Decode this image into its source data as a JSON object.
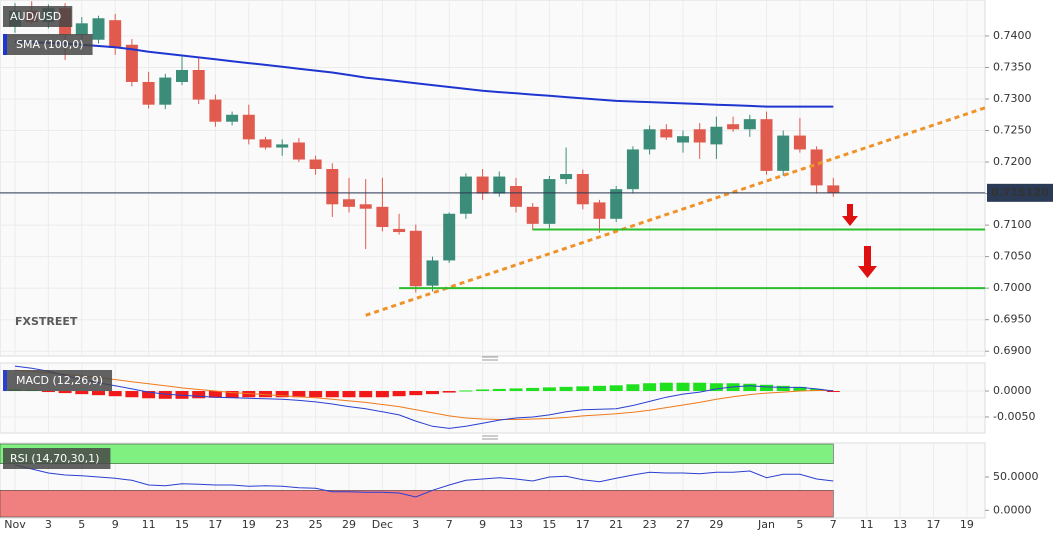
{
  "chart_data": [
    {
      "type": "candlestick",
      "title": "AUD/USD",
      "watermark": "FXSTREET",
      "categories": [
        "Nov",
        null,
        "3",
        null,
        "5",
        null,
        "9",
        null,
        "11",
        null,
        "15",
        null,
        "17",
        null,
        "19",
        null,
        "23",
        null,
        "25",
        null,
        "29",
        null,
        "Dec",
        null,
        "3",
        null,
        "7",
        null,
        "9",
        null,
        "13",
        null,
        "15",
        null,
        "17",
        null,
        "21",
        null,
        "23",
        null,
        "27",
        null,
        "29",
        null,
        null,
        "Jan",
        null,
        "5",
        null,
        "7",
        null,
        "11",
        null,
        "13",
        null,
        "17",
        null,
        "19"
      ],
      "open": [
        0.7415,
        0.744,
        0.7422,
        0.7444,
        0.7402,
        0.7394,
        0.7425,
        0.7386,
        0.7327,
        0.7291,
        0.7327,
        0.7346,
        0.7299,
        0.7264,
        0.7275,
        0.7236,
        0.7223,
        0.7231,
        0.7204,
        0.7189,
        0.7141,
        0.7133,
        0.7129,
        0.7094,
        0.7091,
        0.7004,
        0.7044,
        0.7118,
        0.7177,
        0.715,
        0.7162,
        0.7129,
        0.7102,
        0.7173,
        0.7181,
        0.7136,
        0.711,
        0.7157,
        0.722,
        0.7252,
        0.7231,
        0.7252,
        0.7228,
        0.726,
        0.7252,
        0.7268,
        0.7186,
        0.7242,
        0.722,
        0.7163,
        null,
        null,
        null,
        null,
        null,
        null,
        null,
        null
      ],
      "high": [
        0.7452,
        0.7455,
        0.745,
        0.7452,
        0.743,
        0.7432,
        0.7435,
        0.7395,
        0.7343,
        0.734,
        0.7367,
        0.7365,
        0.7307,
        0.728,
        0.7291,
        0.724,
        0.7236,
        0.7238,
        0.721,
        0.7198,
        0.7175,
        0.7173,
        0.7175,
        0.7118,
        0.7101,
        0.705,
        0.712,
        0.7182,
        0.7189,
        0.7185,
        0.7175,
        0.7135,
        0.7178,
        0.7223,
        0.7188,
        0.714,
        0.7162,
        0.7225,
        0.7258,
        0.726,
        0.725,
        0.7262,
        0.7272,
        0.7272,
        0.7275,
        0.728,
        0.725,
        0.727,
        0.7225,
        0.7175,
        null,
        null,
        null,
        null,
        null,
        null,
        null,
        null
      ],
      "low": [
        0.7405,
        0.7418,
        0.7412,
        0.7362,
        0.7395,
        0.7388,
        0.737,
        0.732,
        0.7285,
        0.7284,
        0.7322,
        0.7292,
        0.7256,
        0.7258,
        0.7228,
        0.722,
        0.721,
        0.72,
        0.718,
        0.7113,
        0.712,
        0.7062,
        0.709,
        0.7085,
        0.6993,
        0.6995,
        0.704,
        0.711,
        0.714,
        0.7145,
        0.712,
        0.7092,
        0.7095,
        0.7165,
        0.7125,
        0.7088,
        0.7105,
        0.715,
        0.7212,
        0.7235,
        0.7215,
        0.7205,
        0.7205,
        0.7248,
        0.724,
        0.718,
        0.7178,
        0.7215,
        0.715,
        0.7145,
        null,
        null,
        null,
        null,
        null,
        null,
        null,
        null
      ],
      "close": [
        0.744,
        0.7422,
        0.7444,
        0.7402,
        0.742,
        0.7428,
        0.7381,
        0.7327,
        0.7291,
        0.7334,
        0.7346,
        0.7299,
        0.7264,
        0.7275,
        0.7236,
        0.7223,
        0.7228,
        0.7204,
        0.7189,
        0.7133,
        0.7129,
        0.7126,
        0.7097,
        0.7089,
        0.7003,
        0.7044,
        0.7118,
        0.7177,
        0.715,
        0.7177,
        0.7129,
        0.7102,
        0.7173,
        0.7181,
        0.7133,
        0.711,
        0.7157,
        0.722,
        0.7252,
        0.7239,
        0.7241,
        0.7231,
        0.7256,
        0.7252,
        0.7268,
        0.7186,
        0.7242,
        0.722,
        0.7163,
        0.7151,
        null,
        null,
        null,
        null,
        null,
        null,
        null,
        null
      ],
      "up_color": "#3b8c78",
      "down_color": "#e05a4e",
      "series": [
        {
          "name": "SMA (100,0)",
          "color": "#1f35d0",
          "values": [
            0.7391,
            0.739,
            0.7389,
            0.7388,
            0.7386,
            0.7384,
            0.7382,
            0.7379,
            0.7375,
            0.7372,
            0.7369,
            0.7366,
            0.7363,
            0.736,
            0.7357,
            0.7354,
            0.7351,
            0.7348,
            0.7345,
            0.7342,
            0.7338,
            0.7334,
            0.7331,
            0.7328,
            0.7325,
            0.7322,
            0.7319,
            0.7316,
            0.7313,
            0.7311,
            0.7309,
            0.7307,
            0.7305,
            0.7303,
            0.7301,
            0.7299,
            0.7297,
            0.7296,
            0.7295,
            0.7294,
            0.7293,
            0.7292,
            0.7291,
            0.729,
            0.7289,
            0.7288,
            0.7288,
            0.7288,
            0.7288,
            0.7288,
            null,
            null,
            null,
            null,
            null,
            null,
            null,
            null
          ]
        }
      ],
      "current_price": {
        "value": 0.71512,
        "label": "0.715120"
      },
      "support_levels": [
        0.7093,
        0.7
      ],
      "support_color": "#2bbd2b",
      "trendline": [
        0.6957,
        0.7286
      ],
      "trendline_color": "#f0922a",
      "ylim": [
        0.6894,
        0.7457
      ],
      "yticks": [
        {
          "value": 0.69,
          "label": "0.6900"
        },
        {
          "value": 0.695,
          "label": "0.6950"
        },
        {
          "value": 0.7,
          "label": "0.7000"
        },
        {
          "value": 0.705,
          "label": "0.7050"
        },
        {
          "value": 0.71,
          "label": "0.7100"
        },
        {
          "value": 0.715,
          "label": "0.7150"
        },
        {
          "value": 0.72,
          "label": "0.7200"
        },
        {
          "value": 0.725,
          "label": "0.7250"
        },
        {
          "value": 0.73,
          "label": "0.7300"
        },
        {
          "value": 0.735,
          "label": "0.7350"
        },
        {
          "value": 0.74,
          "label": "0.7400"
        }
      ],
      "grid": true
    },
    {
      "type": "macd",
      "title": "MACD (12,26,9)",
      "histogram": [
        0.0003,
        0.0002,
        -0.0002,
        -0.0004,
        -0.0006,
        -0.0008,
        -0.001,
        -0.0012,
        -0.0014,
        -0.0015,
        -0.0015,
        -0.0014,
        -0.0013,
        -0.0013,
        -0.0012,
        -0.0012,
        -0.0012,
        -0.0012,
        -0.0012,
        -0.0012,
        -0.0012,
        -0.0012,
        -0.0012,
        -0.001,
        -0.0008,
        -0.0006,
        -0.0003,
        0.0001,
        0.0003,
        0.0004,
        0.0005,
        0.0006,
        0.0007,
        0.0008,
        0.0009,
        0.001,
        0.0011,
        0.0013,
        0.0015,
        0.0016,
        0.0016,
        0.0016,
        0.0015,
        0.0015,
        0.0014,
        0.0012,
        0.001,
        0.0008,
        0.0004,
        -0.0001,
        null,
        null,
        null,
        null,
        null,
        null,
        null,
        null
      ],
      "macd": [
        0.0048,
        0.0044,
        0.0038,
        0.003,
        0.0022,
        0.0016,
        0.001,
        0.0004,
        -0.0002,
        -0.0006,
        -0.0008,
        -0.001,
        -0.0012,
        -0.0013,
        -0.0014,
        -0.0015,
        -0.0016,
        -0.0018,
        -0.0021,
        -0.0025,
        -0.003,
        -0.0034,
        -0.004,
        -0.0046,
        -0.0058,
        -0.0068,
        -0.0072,
        -0.0068,
        -0.0062,
        -0.0056,
        -0.0052,
        -0.005,
        -0.0046,
        -0.004,
        -0.0036,
        -0.0035,
        -0.0034,
        -0.0028,
        -0.002,
        -0.0012,
        -0.0006,
        -0.0002,
        0.0004,
        0.0008,
        0.001,
        0.0008,
        0.0007,
        0.0007,
        0.0004,
        0.0,
        null,
        null,
        null,
        null,
        null,
        null,
        null,
        null
      ],
      "signal": [
        0.004,
        0.0038,
        0.0035,
        0.0032,
        0.0029,
        0.0026,
        0.0022,
        0.0018,
        0.0014,
        0.001,
        0.0006,
        0.0003,
        0.0,
        -0.0003,
        -0.0005,
        -0.0007,
        -0.0009,
        -0.0011,
        -0.0013,
        -0.0016,
        -0.0019,
        -0.0022,
        -0.0026,
        -0.003,
        -0.0036,
        -0.0042,
        -0.0048,
        -0.0052,
        -0.0054,
        -0.0055,
        -0.0055,
        -0.0054,
        -0.0053,
        -0.0051,
        -0.0048,
        -0.0046,
        -0.0044,
        -0.0041,
        -0.0037,
        -0.0032,
        -0.0027,
        -0.0022,
        -0.0016,
        -0.0011,
        -0.0007,
        -0.0004,
        -0.0002,
        0.0,
        0.0001,
        0.0001,
        null,
        null,
        null,
        null,
        null,
        null,
        null,
        null
      ],
      "up_color": "#1fe01f",
      "down_color": "#f01a1a",
      "macd_color": "#2a3fd0",
      "signal_color": "#f07a1a",
      "ylim": [
        -0.0079,
        0.0054
      ],
      "yticks": [
        {
          "value": -0.005,
          "label": "-0.0050"
        },
        {
          "value": 0,
          "label": "0.0000"
        }
      ]
    },
    {
      "type": "rsi",
      "title": "RSI (14,70,30,1)",
      "values": [
        68,
        62,
        56,
        53,
        52,
        50,
        48,
        45,
        38,
        37,
        40,
        39,
        38,
        38,
        36,
        37,
        36,
        34,
        33,
        28,
        28,
        27,
        27,
        26,
        20,
        30,
        38,
        45,
        47,
        49,
        47,
        44,
        50,
        51,
        46,
        43,
        48,
        53,
        57,
        56,
        56,
        55,
        57,
        57,
        59,
        49,
        54,
        54,
        47,
        44,
        null,
        null,
        null,
        null,
        null,
        null,
        null,
        null
      ],
      "color": "#2a3fd0",
      "overbought": 70,
      "oversold": 30,
      "overbought_color": "#80f080",
      "oversold_color": "#f08080",
      "ylim": [
        -10,
        101
      ],
      "yticks": [
        {
          "value": 0,
          "label": "0.0000"
        },
        {
          "value": 50,
          "label": "50.0000"
        }
      ]
    }
  ]
}
